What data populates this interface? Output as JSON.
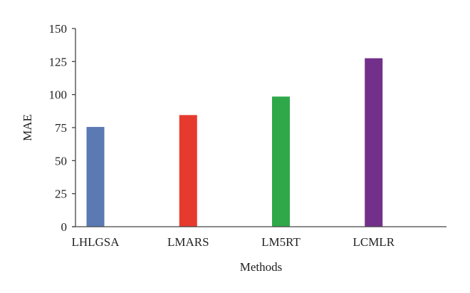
{
  "chart_data": {
    "type": "bar",
    "categories": [
      "LHLGSA",
      "LMARS",
      "LM5RT",
      "LCMLR"
    ],
    "values": [
      75.5,
      84.5,
      98.5,
      127.5
    ],
    "colors": [
      "#5b79b3",
      "#e63a2f",
      "#2fa84a",
      "#73308a"
    ],
    "xlabel": "Methods",
    "ylabel": "MAE",
    "ylim": [
      0,
      150
    ],
    "yticks": [
      0,
      25,
      50,
      75,
      100,
      125,
      150
    ],
    "grid": false,
    "legend": "none"
  }
}
